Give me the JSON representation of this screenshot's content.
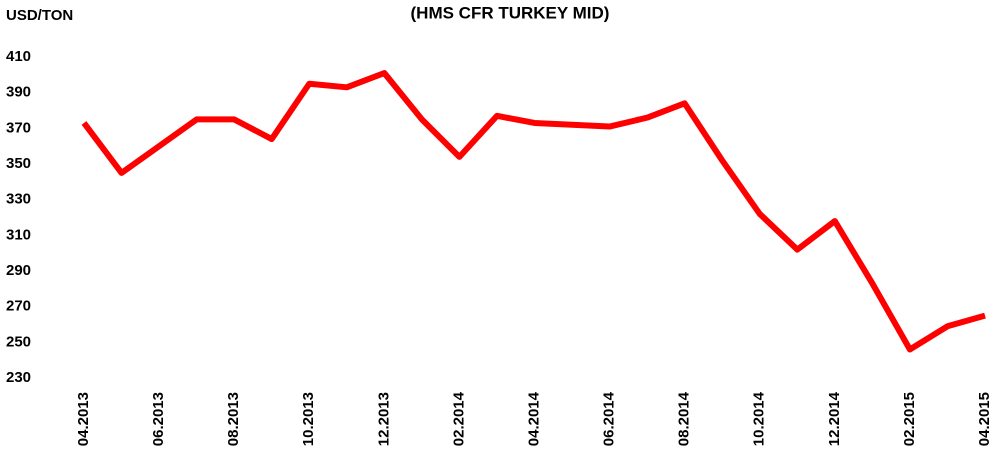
{
  "chart_data": {
    "type": "line",
    "title": "(HMS CFR TURKEY MID)",
    "y_label": "USD/TON",
    "categories": [
      "04.2013",
      null,
      "06.2013",
      null,
      "08.2013",
      null,
      "10.2013",
      null,
      "12.2013",
      null,
      "02.2014",
      null,
      "04.2014",
      null,
      "06.2014",
      null,
      "08.2014",
      null,
      "10.2014",
      null,
      "12.2014",
      null,
      "02.2015",
      null,
      "04.2015"
    ],
    "series": [
      {
        "name": "HMS CFR TURKEY MID",
        "color": "#ff0000",
        "values": [
          373,
          345,
          360,
          375,
          375,
          364,
          395,
          393,
          401,
          375,
          354,
          377,
          373,
          372,
          371,
          376,
          384,
          352,
          322,
          302,
          318,
          283,
          246,
          259,
          265
        ]
      }
    ],
    "ylim": [
      230,
      410
    ],
    "yticks": [
      230,
      250,
      270,
      290,
      310,
      330,
      350,
      370,
      390,
      410
    ],
    "grid": false
  }
}
